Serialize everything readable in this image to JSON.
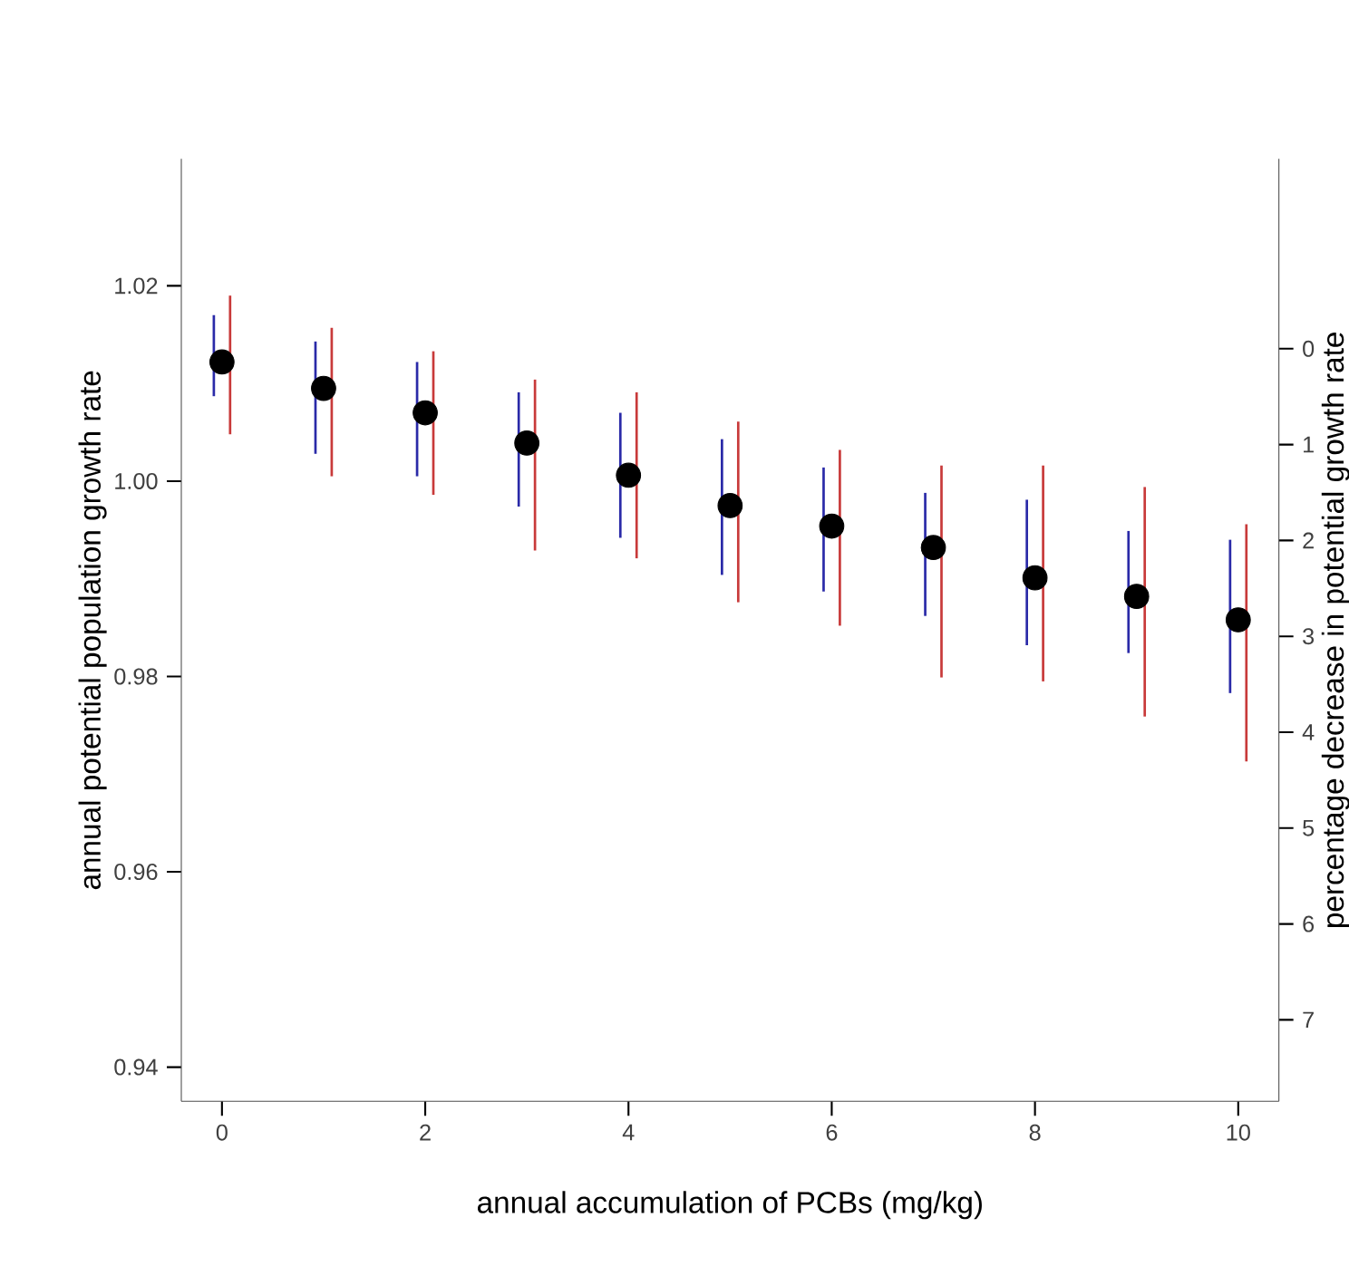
{
  "chart_data": {
    "type": "scatter",
    "xlabel": "annual accumulation of PCBs (mg/kg)",
    "ylabel": "annual potential population growth rate",
    "y2label": "percentage decrease in potential growth rate",
    "x": [
      0,
      1,
      2,
      3,
      4,
      5,
      6,
      7,
      8,
      9,
      10
    ],
    "xlim": [
      -0.4,
      10.4
    ],
    "xticks": [
      0,
      2,
      4,
      6,
      8,
      10
    ],
    "ylim": [
      0.9365,
      1.033
    ],
    "yticks": [
      0.94,
      0.96,
      0.98,
      {
        "value": 1.0,
        "label": "1.00"
      },
      1.02
    ],
    "y2lim": [
      7.85,
      -1.98
    ],
    "y2ticks": [
      0,
      1,
      2,
      3,
      4,
      5,
      6,
      7
    ],
    "marker": "circle",
    "grid": false,
    "series": [
      {
        "type": "bar",
        "color": "#2a2aa8",
        "x": [
          -0.08,
          0.92,
          1.92,
          2.92,
          3.92,
          4.92,
          5.92,
          6.92,
          7.92,
          8.92,
          9.92
        ],
        "base": [
          1.0087,
          1.0028,
          1.0005,
          0.9974,
          0.9942,
          0.9904,
          0.9887,
          0.9862,
          0.9832,
          0.9824,
          0.9783
        ],
        "values": [
          0.0083,
          0.0115,
          0.0117,
          0.0117,
          0.0128,
          0.0139,
          0.0127,
          0.0126,
          0.0149,
          0.0125,
          0.0157
        ]
      },
      {
        "type": "bar",
        "color": "#c83a3a",
        "x": [
          0.08,
          1.08,
          2.08,
          3.08,
          4.08,
          5.08,
          6.08,
          7.08,
          8.08,
          9.08,
          10.08
        ],
        "base": [
          1.0048,
          1.0005,
          0.9986,
          0.9929,
          0.9921,
          0.9876,
          0.9852,
          0.9799,
          0.9795,
          0.9759,
          0.9713
        ],
        "values": [
          0.0142,
          0.0152,
          0.0147,
          0.0175,
          0.017,
          0.0185,
          0.018,
          0.0217,
          0.0221,
          0.0235,
          0.0243
        ]
      },
      {
        "color": "#000000",
        "values": [
          1.0122,
          1.0095,
          1.007,
          1.0039,
          1.0006,
          0.9975,
          0.9954,
          0.9932,
          0.9901,
          0.9882,
          0.9858
        ]
      }
    ]
  }
}
